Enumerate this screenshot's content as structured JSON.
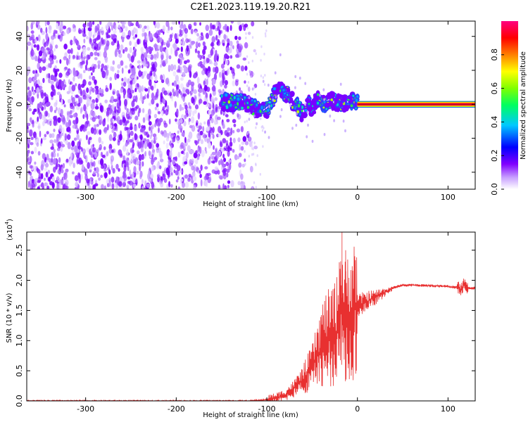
{
  "title": "C2E1.2023.119.19.20.R21",
  "chart_data": [
    {
      "type": "heatmap",
      "xlabel": "Height of straight line (km)",
      "ylabel": "Frequency (Hz)",
      "xlim": [
        -365,
        130
      ],
      "ylim": [
        -50,
        49
      ],
      "xticks": [
        -300,
        -200,
        -100,
        0,
        100
      ],
      "yticks": [
        -40,
        -20,
        0,
        20,
        40
      ],
      "noise_region_x": [
        -365,
        -120
      ],
      "signal_track": [
        {
          "x": -150,
          "y": 2
        },
        {
          "x": -140,
          "y": 1
        },
        {
          "x": -130,
          "y": 1
        },
        {
          "x": -120,
          "y": 0
        },
        {
          "x": -110,
          "y": -3
        },
        {
          "x": -100,
          "y": -4
        },
        {
          "x": -90,
          "y": 8
        },
        {
          "x": -85,
          "y": 10
        },
        {
          "x": -75,
          "y": 4
        },
        {
          "x": -65,
          "y": -2
        },
        {
          "x": -60,
          "y": -6
        },
        {
          "x": -55,
          "y": 1
        },
        {
          "x": -50,
          "y": -3
        },
        {
          "x": -45,
          "y": 3
        },
        {
          "x": -38,
          "y": 0
        },
        {
          "x": -30,
          "y": 2
        },
        {
          "x": -20,
          "y": 1
        },
        {
          "x": -10,
          "y": 1
        },
        {
          "x": -5,
          "y": 2
        },
        {
          "x": 0,
          "y": 1
        }
      ],
      "constant_line": {
        "x_start": 0,
        "x_end": 130,
        "y": 0
      },
      "colorbar": {
        "label": "Normalized spectral amplitude",
        "range": [
          0,
          1
        ],
        "ticks": [
          0.0,
          0.2,
          0.4,
          0.6,
          0.8
        ],
        "tick_labels": [
          "0.0",
          "0.2",
          "0.4",
          "0.6",
          "0.8"
        ],
        "colors": [
          "#ffffff",
          "#8000ff",
          "#0000ff",
          "#00c8ff",
          "#00ff00",
          "#ffff00",
          "#ff8000",
          "#ff0000",
          "#ff0080"
        ]
      }
    },
    {
      "type": "line",
      "xlabel": "Height of straight line (km)",
      "ylabel": "SNR (10 * v/v)",
      "scale_note": "(x10",
      "scale_exp": "4",
      "scale_close": ")",
      "xlim": [
        -365,
        130
      ],
      "ylim": [
        0,
        2.8
      ],
      "xticks": [
        -300,
        -200,
        -100,
        0,
        100
      ],
      "yticks": [
        0.0,
        0.5,
        1.0,
        1.5,
        2.0,
        2.5
      ],
      "ytick_labels": [
        "0.0",
        "0.5",
        "1.0",
        "1.5",
        "2.0",
        "2.5"
      ],
      "color": "#e83030",
      "series": [
        {
          "x": [
            -365,
            -300,
            -200,
            -150,
            -120,
            -110,
            -100,
            -90,
            -80,
            -70,
            -60,
            -50,
            -45,
            -40,
            -35,
            -30,
            -25,
            -20,
            -18,
            -15,
            -12,
            -10,
            -5,
            0,
            5,
            10,
            20,
            30,
            40,
            50,
            60,
            80,
            100,
            110,
            115,
            118,
            120,
            125,
            130
          ],
          "y": [
            0.0,
            0.0,
            0.0,
            0.0,
            0.0,
            0.01,
            0.02,
            0.05,
            0.1,
            0.2,
            0.35,
            0.55,
            0.7,
            0.9,
            1.0,
            1.05,
            1.1,
            1.25,
            1.7,
            1.3,
            1.35,
            1.45,
            1.5,
            1.55,
            1.6,
            1.65,
            1.72,
            1.8,
            1.88,
            1.92,
            1.92,
            1.91,
            1.9,
            1.88,
            1.85,
            1.95,
            1.88,
            1.87,
            1.87
          ]
        }
      ],
      "spikes": [
        {
          "x": -20,
          "y": 2.3
        },
        {
          "x": -17,
          "y": 2.8
        },
        {
          "x": -13,
          "y": 2.5
        },
        {
          "x": -25,
          "y": 1.95
        },
        {
          "x": -10,
          "y": 1.6
        }
      ]
    }
  ]
}
